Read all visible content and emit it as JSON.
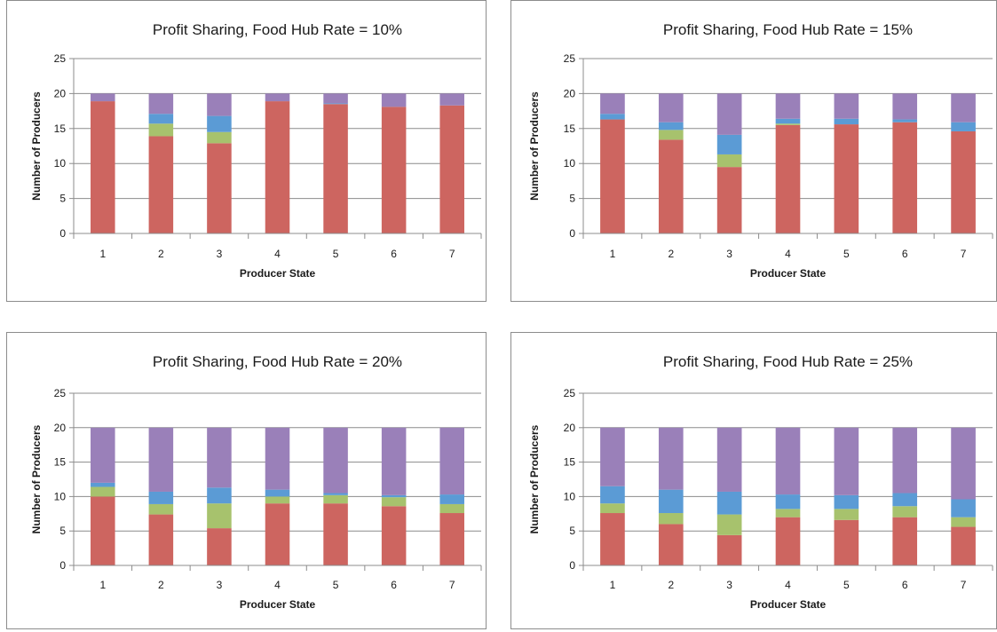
{
  "chart_data": [
    {
      "type": "bar",
      "stacked": true,
      "title": "Profit Sharing, Food Hub Rate = 10%",
      "xlabel": "Producer State",
      "ylabel": "Number of Producers",
      "ylim": [
        0,
        25
      ],
      "yticks": [
        0,
        5,
        10,
        15,
        20,
        25
      ],
      "grid": true,
      "categories": [
        "1",
        "2",
        "3",
        "4",
        "5",
        "6",
        "7"
      ],
      "series": [
        {
          "color": "#cd6560",
          "values": [
            18.9,
            13.9,
            12.9,
            18.9,
            18.5,
            18.1,
            18.3
          ]
        },
        {
          "color": "#a7c26d",
          "values": [
            0,
            1.8,
            1.6,
            0,
            0,
            0,
            0
          ]
        },
        {
          "color": "#5b9bd5",
          "values": [
            0,
            1.4,
            2.3,
            0,
            0.1,
            0,
            0
          ]
        },
        {
          "color": "#9a80b9",
          "values": [
            1.1,
            2.9,
            3.2,
            1.1,
            1.4,
            1.9,
            1.7
          ]
        }
      ]
    },
    {
      "type": "bar",
      "stacked": true,
      "title": "Profit Sharing, Food Hub Rate = 15%",
      "xlabel": "Producer State",
      "ylabel": "Number of Producers",
      "ylim": [
        0,
        25
      ],
      "yticks": [
        0,
        5,
        10,
        15,
        20,
        25
      ],
      "grid": true,
      "categories": [
        "1",
        "2",
        "3",
        "4",
        "5",
        "6",
        "7"
      ],
      "series": [
        {
          "color": "#cd6560",
          "values": [
            16.3,
            13.4,
            9.5,
            15.5,
            15.6,
            15.9,
            14.6
          ]
        },
        {
          "color": "#a7c26d",
          "values": [
            0,
            1.4,
            1.8,
            0.2,
            0,
            0,
            0
          ]
        },
        {
          "color": "#5b9bd5",
          "values": [
            0.8,
            1.1,
            2.8,
            0.7,
            0.8,
            0.4,
            1.3
          ]
        },
        {
          "color": "#9a80b9",
          "values": [
            2.9,
            4.1,
            5.9,
            3.6,
            3.6,
            3.7,
            4.1
          ]
        }
      ]
    },
    {
      "type": "bar",
      "stacked": true,
      "title": "Profit Sharing, Food Hub Rate = 20%",
      "xlabel": "Producer State",
      "ylabel": "Number of Producers",
      "ylim": [
        0,
        25
      ],
      "yticks": [
        0,
        5,
        10,
        15,
        20,
        25
      ],
      "grid": true,
      "categories": [
        "1",
        "2",
        "3",
        "4",
        "5",
        "6",
        "7"
      ],
      "series": [
        {
          "color": "#cd6560",
          "values": [
            10.0,
            7.4,
            5.4,
            9.0,
            9.0,
            8.6,
            7.6
          ]
        },
        {
          "color": "#a7c26d",
          "values": [
            1.4,
            1.5,
            3.6,
            1.0,
            1.2,
            1.3,
            1.3
          ]
        },
        {
          "color": "#5b9bd5",
          "values": [
            0.6,
            1.8,
            2.3,
            1.0,
            0.3,
            0.3,
            1.4
          ]
        },
        {
          "color": "#9a80b9",
          "values": [
            8.0,
            9.3,
            8.7,
            9.0,
            9.5,
            9.8,
            9.7
          ]
        }
      ]
    },
    {
      "type": "bar",
      "stacked": true,
      "title": "Profit Sharing, Food Hub Rate = 25%",
      "xlabel": "Producer State",
      "ylabel": "Number of Producers",
      "ylim": [
        0,
        25
      ],
      "yticks": [
        0,
        5,
        10,
        15,
        20,
        25
      ],
      "grid": true,
      "categories": [
        "1",
        "2",
        "3",
        "4",
        "5",
        "6",
        "7"
      ],
      "series": [
        {
          "color": "#cd6560",
          "values": [
            7.6,
            6.0,
            4.4,
            7.0,
            6.6,
            7.0,
            5.6
          ]
        },
        {
          "color": "#a7c26d",
          "values": [
            1.4,
            1.6,
            3.0,
            1.2,
            1.6,
            1.6,
            1.4
          ]
        },
        {
          "color": "#5b9bd5",
          "values": [
            2.5,
            3.4,
            3.3,
            2.1,
            2.0,
            1.9,
            2.6
          ]
        },
        {
          "color": "#9a80b9",
          "values": [
            8.5,
            9.0,
            9.3,
            9.7,
            9.8,
            9.5,
            10.4
          ]
        }
      ]
    }
  ]
}
